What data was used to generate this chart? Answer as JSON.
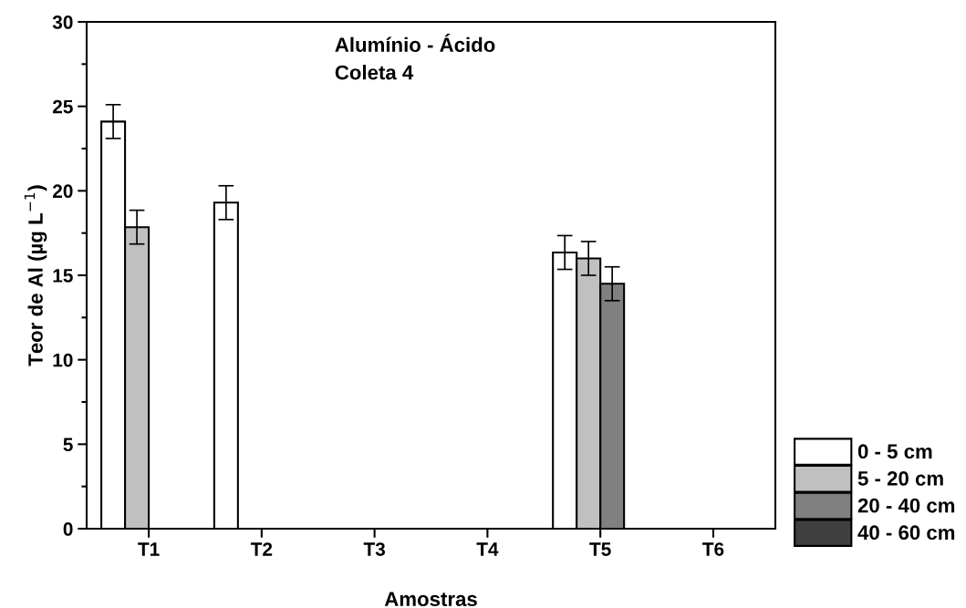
{
  "chart_data": {
    "type": "bar",
    "title": "Alumínio - Ácido\nColeta 4",
    "xlabel": "Amostras",
    "ylabel": "Teor de Al (µg L$^{−1}$)",
    "categories": [
      "T1",
      "T2",
      "T3",
      "T4",
      "T5",
      "T6"
    ],
    "series": [
      {
        "name": "0 - 5 cm",
        "color": "#ffffff",
        "values": [
          24.1,
          19.3,
          null,
          null,
          16.35,
          null
        ],
        "errors": [
          1.0,
          1.0,
          null,
          null,
          1.0,
          null
        ]
      },
      {
        "name": "5 - 20 cm",
        "color": "#c0c0c0",
        "values": [
          17.85,
          null,
          null,
          null,
          16.0,
          null
        ],
        "errors": [
          1.0,
          null,
          null,
          null,
          1.0,
          null
        ]
      },
      {
        "name": "20 - 40 cm",
        "color": "#808080",
        "values": [
          null,
          null,
          null,
          null,
          14.5,
          null
        ],
        "errors": [
          null,
          null,
          null,
          null,
          1.0,
          null
        ]
      },
      {
        "name": "40 - 60 cm",
        "color": "#404040",
        "values": [
          null,
          null,
          null,
          null,
          null,
          null
        ]
      }
    ],
    "ylim": [
      0,
      30
    ],
    "yticks": [
      0,
      5,
      10,
      15,
      20,
      25,
      30
    ],
    "grid": false,
    "legend": "bottom right"
  }
}
